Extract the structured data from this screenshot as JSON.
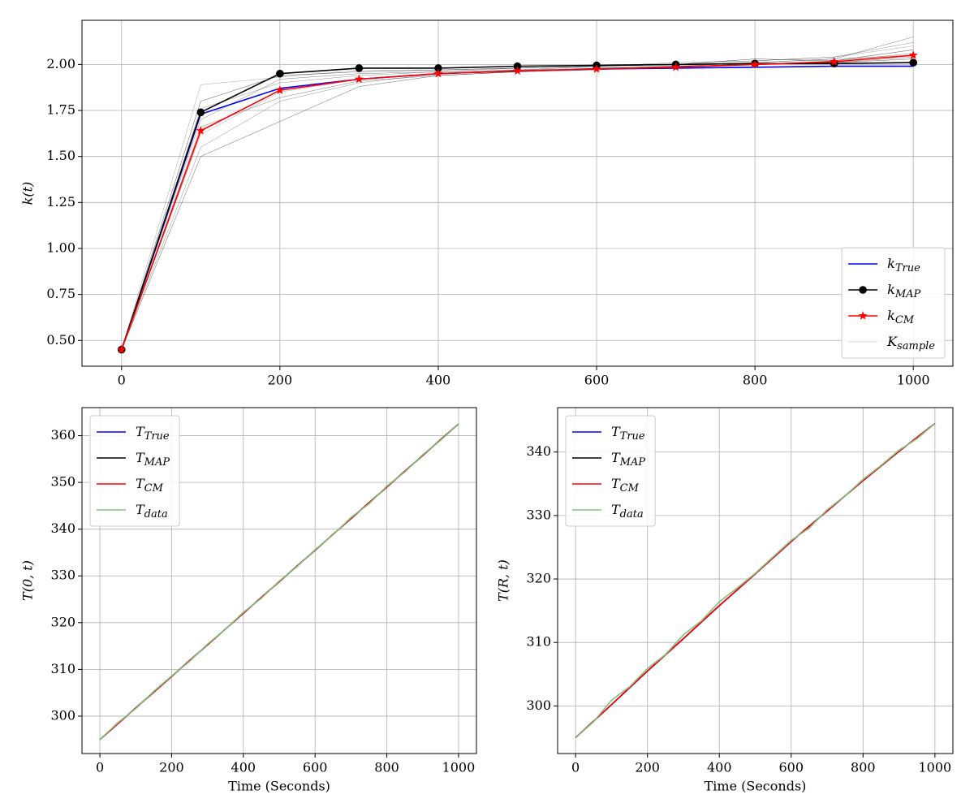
{
  "chart_data": [
    {
      "type": "line",
      "ylabel": "k(t)",
      "grid": true,
      "legend": "lower right",
      "x": [
        0,
        100,
        200,
        300,
        400,
        500,
        600,
        700,
        800,
        900,
        1000
      ],
      "xlim": [
        -50,
        1050
      ],
      "xticks": [
        0,
        200,
        400,
        600,
        800,
        1000
      ],
      "ylim": [
        0.36,
        2.24
      ],
      "yticks": [
        {
          "value": 0.5,
          "label": "0.50"
        },
        0.75,
        {
          "value": 1,
          "label": "1.00"
        },
        1.25,
        {
          "value": 1.5,
          "label": "1.50"
        },
        1.75,
        {
          "value": 2,
          "label": "2.00"
        }
      ],
      "series": [
        {
          "name": "k",
          "subscript": "True",
          "color": "#0000ff",
          "values": [
            0.45,
            1.73,
            1.87,
            1.92,
            1.95,
            1.965,
            1.975,
            1.98,
            1.985,
            1.99,
            1.99
          ]
        },
        {
          "name": "k",
          "subscript": "MAP",
          "color": "#000000",
          "marker": "circle",
          "values": [
            0.45,
            1.74,
            1.95,
            1.98,
            1.98,
            1.99,
            1.995,
            2.0,
            2.005,
            2.005,
            2.01
          ]
        },
        {
          "name": "k",
          "subscript": "CM",
          "color": "#ff0000",
          "marker": "star",
          "values": [
            0.45,
            1.64,
            1.86,
            1.92,
            1.95,
            1.965,
            1.975,
            1.985,
            2.0,
            2.015,
            2.05
          ]
        }
      ],
      "samples": {
        "name": "K",
        "subscript": "sample",
        "color": "#000000",
        "values": [
          [
            0.45,
            1.89,
            1.93,
            1.97,
            1.97,
            1.98,
            1.99,
            2.0,
            2.02,
            2.04,
            2.1
          ],
          [
            0.45,
            1.55,
            1.8,
            1.9,
            1.95,
            1.96,
            1.98,
            1.99,
            2.0,
            2.02,
            2.06
          ],
          [
            0.45,
            1.7,
            1.92,
            1.95,
            1.96,
            1.97,
            1.99,
            2.0,
            2.01,
            2.03,
            2.15
          ],
          [
            0.45,
            1.5,
            1.69,
            1.88,
            1.94,
            1.96,
            1.97,
            1.99,
            2.0,
            2.01,
            2.03
          ],
          [
            0.45,
            1.8,
            1.94,
            1.96,
            1.97,
            1.98,
            1.99,
            2.0,
            2.03,
            2.02,
            2.08
          ],
          [
            0.45,
            1.62,
            1.85,
            1.92,
            1.95,
            1.97,
            1.98,
            1.99,
            2.01,
            2.03,
            2.05
          ],
          [
            0.45,
            1.76,
            1.9,
            1.94,
            1.96,
            1.98,
            1.99,
            2.01,
            2.02,
            2.04,
            2.12
          ],
          [
            0.45,
            1.66,
            1.82,
            1.91,
            1.94,
            1.96,
            1.98,
            1.99,
            2.0,
            2.01,
            2.04
          ]
        ]
      }
    },
    {
      "type": "line",
      "xlabel": "Time (Seconds)",
      "ylabel": "T(0, t)",
      "grid": true,
      "legend": "upper left",
      "x": [
        0,
        100,
        200,
        300,
        400,
        500,
        600,
        700,
        800,
        900,
        1000
      ],
      "xlim": [
        -50,
        1050
      ],
      "xticks": [
        0,
        200,
        400,
        600,
        800,
        1000
      ],
      "ylim": [
        292,
        366
      ],
      "yticks": [
        300,
        310,
        320,
        330,
        340,
        350,
        360
      ],
      "series": [
        {
          "name": "T",
          "subscript": "True",
          "color": "#0000ff",
          "values": [
            295,
            301.75,
            308.5,
            315.25,
            322,
            328.75,
            335.5,
            342.25,
            349,
            355.75,
            362.5
          ]
        },
        {
          "name": "T",
          "subscript": "MAP",
          "color": "#000000",
          "values": [
            295,
            301.75,
            308.5,
            315.25,
            322,
            328.75,
            335.5,
            342.25,
            349,
            355.75,
            362.5
          ]
        },
        {
          "name": "T",
          "subscript": "CM",
          "color": "#ff0000",
          "values": [
            295,
            301.75,
            308.5,
            315.25,
            322,
            328.75,
            335.5,
            342.25,
            349,
            355.75,
            362.5
          ]
        },
        {
          "name": "T",
          "subscript": "data",
          "color": "#80c080",
          "x": [
            0,
            50,
            100,
            150,
            200,
            250,
            300,
            350,
            400,
            450,
            500,
            550,
            600,
            650,
            700,
            750,
            800,
            850,
            900,
            950,
            1000
          ],
          "values": [
            295,
            298.6,
            301.6,
            305.3,
            308.6,
            311.7,
            315.4,
            318.6,
            322.2,
            325.2,
            328.9,
            332.0,
            335.6,
            338.8,
            342.5,
            345.4,
            349.2,
            352.2,
            355.9,
            359.0,
            362.5
          ]
        }
      ]
    },
    {
      "type": "line",
      "xlabel": "Time (Seconds)",
      "ylabel": "T(R, t)",
      "grid": true,
      "legend": "upper left",
      "x": [
        0,
        100,
        200,
        300,
        400,
        500,
        600,
        700,
        800,
        900,
        1000
      ],
      "xlim": [
        -50,
        1050
      ],
      "xticks": [
        0,
        200,
        400,
        600,
        800,
        1000
      ],
      "ylim": [
        292.5,
        347
      ],
      "yticks": [
        300,
        310,
        320,
        330,
        340
      ],
      "series": [
        {
          "name": "T",
          "subscript": "True",
          "color": "#0000ff",
          "values": [
            295,
            300.2,
            305.5,
            310.6,
            315.8,
            320.8,
            325.9,
            330.7,
            335.5,
            340.1,
            344.5
          ]
        },
        {
          "name": "T",
          "subscript": "MAP",
          "color": "#000000",
          "values": [
            295,
            300.2,
            305.5,
            310.6,
            315.8,
            320.8,
            325.9,
            330.7,
            335.5,
            340.1,
            344.5
          ]
        },
        {
          "name": "T",
          "subscript": "CM",
          "color": "#ff0000",
          "values": [
            295,
            300.2,
            305.5,
            310.6,
            315.8,
            320.8,
            325.9,
            330.7,
            335.5,
            340.1,
            344.5
          ]
        },
        {
          "name": "T",
          "subscript": "data",
          "color": "#80c080",
          "x": [
            0,
            50,
            100,
            150,
            200,
            250,
            300,
            350,
            400,
            450,
            500,
            550,
            600,
            650,
            700,
            750,
            800,
            850,
            900,
            950,
            1000
          ],
          "values": [
            295,
            297.5,
            300.9,
            303.0,
            305.9,
            308.1,
            311.2,
            313.4,
            316.4,
            318.6,
            320.9,
            323.5,
            326.1,
            328.0,
            330.9,
            333.1,
            335.7,
            337.9,
            340.3,
            342.1,
            344.5
          ]
        }
      ]
    }
  ]
}
